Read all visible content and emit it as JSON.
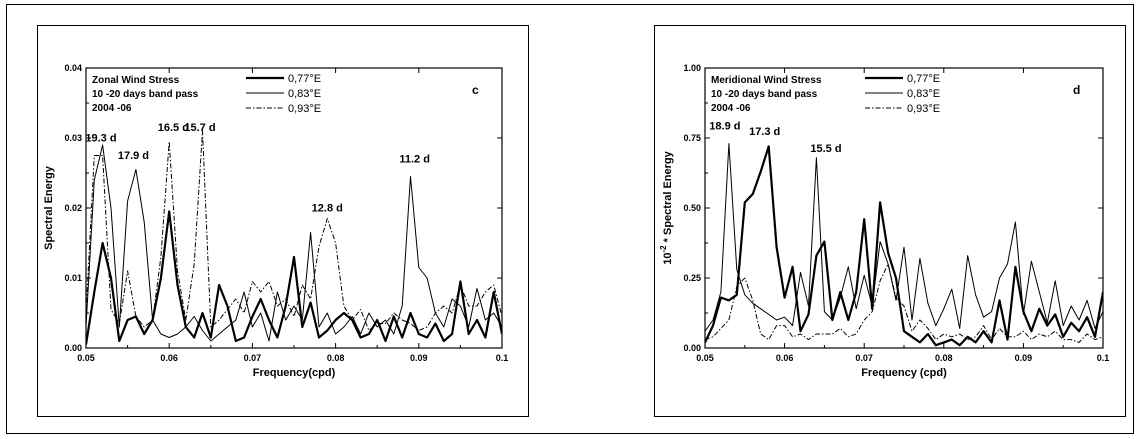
{
  "chart_data": [
    {
      "type": "line",
      "panel_letter": "c",
      "title_lines": [
        "Zonal Wind Stress",
        "10 -20  days band pass",
        "2004 -06"
      ],
      "xlabel": "Frequency(cpd)",
      "ylabel": "Spectral Energy",
      "ylabel_sup": "",
      "ylabel_prefix": "",
      "xlim": [
        0.05,
        0.1
      ],
      "ylim": [
        0,
        0.04
      ],
      "xticks": [
        0.05,
        0.06,
        0.07,
        0.08,
        0.09,
        0.1
      ],
      "xtick_labels": [
        "0.05",
        "0.06",
        "0.07",
        "0.08",
        "0.09",
        "0.1"
      ],
      "yticks": [
        0,
        0.01,
        0.02,
        0.03,
        0.04
      ],
      "ytick_labels": [
        "0.00",
        "0.01",
        "0.02",
        "0.03",
        "0.04"
      ],
      "legend_position": "top-center",
      "series": [
        {
          "name": "0,77°E",
          "style": "thick",
          "x": [
            0.05,
            0.051,
            0.052,
            0.053,
            0.054,
            0.055,
            0.056,
            0.057,
            0.058,
            0.059,
            0.06,
            0.061,
            0.062,
            0.063,
            0.064,
            0.065,
            0.066,
            0.067,
            0.068,
            0.069,
            0.07,
            0.071,
            0.072,
            0.073,
            0.074,
            0.075,
            0.076,
            0.077,
            0.078,
            0.079,
            0.08,
            0.081,
            0.082,
            0.083,
            0.084,
            0.085,
            0.086,
            0.087,
            0.088,
            0.089,
            0.09,
            0.091,
            0.092,
            0.093,
            0.094,
            0.095,
            0.096,
            0.097,
            0.098,
            0.099,
            0.1
          ],
          "y": [
            0.0005,
            0.008,
            0.015,
            0.01,
            0.001,
            0.004,
            0.0045,
            0.002,
            0.004,
            0.01,
            0.0195,
            0.009,
            0.003,
            0.0015,
            0.005,
            0.0015,
            0.009,
            0.006,
            0.001,
            0.0015,
            0.0045,
            0.007,
            0.004,
            0.0015,
            0.006,
            0.013,
            0.003,
            0.0065,
            0.0015,
            0.0025,
            0.004,
            0.005,
            0.004,
            0.0015,
            0.002,
            0.004,
            0.001,
            0.0045,
            0.0015,
            0.005,
            0.002,
            0.0015,
            0.0035,
            0.001,
            0.002,
            0.0095,
            0.002,
            0.004,
            0.0015,
            0.008,
            0.002
          ]
        },
        {
          "name": "0,83°E",
          "style": "thin",
          "x": [
            0.05,
            0.051,
            0.052,
            0.053,
            0.054,
            0.055,
            0.056,
            0.057,
            0.058,
            0.059,
            0.06,
            0.061,
            0.062,
            0.063,
            0.064,
            0.065,
            0.066,
            0.067,
            0.068,
            0.069,
            0.07,
            0.071,
            0.072,
            0.073,
            0.074,
            0.075,
            0.076,
            0.077,
            0.078,
            0.079,
            0.08,
            0.081,
            0.082,
            0.083,
            0.084,
            0.085,
            0.086,
            0.087,
            0.088,
            0.089,
            0.09,
            0.091,
            0.092,
            0.093,
            0.094,
            0.095,
            0.096,
            0.097,
            0.098,
            0.099,
            0.1
          ],
          "y": [
            0.003,
            0.024,
            0.029,
            0.02,
            0.003,
            0.021,
            0.0255,
            0.018,
            0.004,
            0.002,
            0.0015,
            0.002,
            0.003,
            0.0045,
            0.0025,
            0.001,
            0.002,
            0.003,
            0.004,
            0.008,
            0.003,
            0.005,
            0.001,
            0.008,
            0.004,
            0.006,
            0.004,
            0.0165,
            0.003,
            0.005,
            0.002,
            0.003,
            0.0045,
            0.002,
            0.005,
            0.003,
            0.004,
            0.002,
            0.006,
            0.0245,
            0.0115,
            0.01,
            0.005,
            0.003,
            0.007,
            0.006,
            0.003,
            0.0085,
            0.004,
            0.005,
            0.003
          ]
        },
        {
          "name": "0,93°E",
          "style": "dash-dot",
          "x": [
            0.05,
            0.051,
            0.052,
            0.053,
            0.054,
            0.055,
            0.056,
            0.057,
            0.058,
            0.059,
            0.06,
            0.061,
            0.062,
            0.063,
            0.064,
            0.065,
            0.066,
            0.067,
            0.068,
            0.069,
            0.07,
            0.071,
            0.072,
            0.073,
            0.074,
            0.075,
            0.076,
            0.077,
            0.078,
            0.079,
            0.08,
            0.081,
            0.082,
            0.083,
            0.084,
            0.085,
            0.086,
            0.087,
            0.088,
            0.089,
            0.09,
            0.091,
            0.092,
            0.093,
            0.094,
            0.095,
            0.096,
            0.097,
            0.098,
            0.099,
            0.1
          ],
          "y": [
            0.005,
            0.0275,
            0.0275,
            0.0055,
            0.0035,
            0.011,
            0.0045,
            0.003,
            0.004,
            0.013,
            0.0295,
            0.011,
            0.004,
            0.012,
            0.031,
            0.003,
            0.004,
            0.0055,
            0.007,
            0.005,
            0.0095,
            0.008,
            0.0095,
            0.006,
            0.007,
            0.0045,
            0.009,
            0.007,
            0.0145,
            0.0185,
            0.015,
            0.006,
            0.004,
            0.0055,
            0.0025,
            0.0035,
            0.0035,
            0.005,
            0.004,
            0.0035,
            0.0025,
            0.003,
            0.005,
            0.006,
            0.005,
            0.009,
            0.006,
            0.006,
            0.008,
            0.009,
            0.0045
          ]
        }
      ],
      "annotations": [
        {
          "text": "19.3 d",
          "x": 0.0518,
          "y": 0.0295
        },
        {
          "text": "17.9 d",
          "x": 0.0557,
          "y": 0.027
        },
        {
          "text": "16.5 d",
          "x": 0.0605,
          "y": 0.031
        },
        {
          "text": "15.7 d",
          "x": 0.0637,
          "y": 0.031
        },
        {
          "text": "12.8 d",
          "x": 0.079,
          "y": 0.0195
        },
        {
          "text": "11.2 d",
          "x": 0.0895,
          "y": 0.0265
        }
      ]
    },
    {
      "type": "line",
      "panel_letter": "d",
      "title_lines": [
        "Meridional Wind Stress",
        "10 -20  days band pass",
        "2004 -06"
      ],
      "xlabel": "Frequency (cpd)",
      "ylabel": " * Spectral Energy",
      "ylabel_prefix": "10",
      "ylabel_sup": "-2",
      "xlim": [
        0.05,
        0.1
      ],
      "ylim": [
        0,
        1.0
      ],
      "xticks": [
        0.05,
        0.06,
        0.07,
        0.08,
        0.09,
        0.1
      ],
      "xtick_labels": [
        "0.05",
        "0.06",
        "0.07",
        "0.08",
        "0.09",
        "0.1"
      ],
      "yticks": [
        0,
        0.25,
        0.5,
        0.75,
        1.0
      ],
      "ytick_labels": [
        "0.00",
        "0.25",
        "0.50",
        "0.75",
        "1.00"
      ],
      "legend_position": "top-center",
      "series": [
        {
          "name": "0,77°E",
          "style": "thick",
          "x": [
            0.05,
            0.051,
            0.052,
            0.053,
            0.054,
            0.055,
            0.056,
            0.057,
            0.058,
            0.059,
            0.06,
            0.061,
            0.062,
            0.063,
            0.064,
            0.065,
            0.066,
            0.067,
            0.068,
            0.069,
            0.07,
            0.071,
            0.072,
            0.073,
            0.074,
            0.075,
            0.076,
            0.077,
            0.078,
            0.079,
            0.08,
            0.081,
            0.082,
            0.083,
            0.084,
            0.085,
            0.086,
            0.087,
            0.088,
            0.089,
            0.09,
            0.091,
            0.092,
            0.093,
            0.094,
            0.095,
            0.096,
            0.097,
            0.098,
            0.099,
            0.1
          ],
          "y": [
            0.02,
            0.08,
            0.18,
            0.17,
            0.19,
            0.52,
            0.55,
            0.63,
            0.72,
            0.36,
            0.18,
            0.29,
            0.06,
            0.12,
            0.33,
            0.38,
            0.1,
            0.2,
            0.1,
            0.2,
            0.46,
            0.14,
            0.52,
            0.34,
            0.25,
            0.06,
            0.04,
            0.02,
            0.05,
            0.01,
            0.02,
            0.03,
            0.01,
            0.04,
            0.02,
            0.06,
            0.02,
            0.17,
            0.03,
            0.29,
            0.13,
            0.06,
            0.14,
            0.08,
            0.12,
            0.04,
            0.09,
            0.06,
            0.11,
            0.04,
            0.2
          ]
        },
        {
          "name": "0,83°E",
          "style": "thin",
          "x": [
            0.05,
            0.051,
            0.052,
            0.053,
            0.054,
            0.055,
            0.056,
            0.057,
            0.058,
            0.059,
            0.06,
            0.061,
            0.062,
            0.063,
            0.064,
            0.065,
            0.066,
            0.067,
            0.068,
            0.069,
            0.07,
            0.071,
            0.072,
            0.073,
            0.074,
            0.075,
            0.076,
            0.077,
            0.078,
            0.079,
            0.08,
            0.081,
            0.082,
            0.083,
            0.084,
            0.085,
            0.086,
            0.087,
            0.088,
            0.089,
            0.09,
            0.091,
            0.092,
            0.093,
            0.094,
            0.095,
            0.096,
            0.097,
            0.098,
            0.099,
            0.1
          ],
          "y": [
            0.06,
            0.1,
            0.2,
            0.73,
            0.28,
            0.19,
            0.16,
            0.14,
            0.12,
            0.1,
            0.11,
            0.08,
            0.27,
            0.15,
            0.68,
            0.13,
            0.1,
            0.18,
            0.29,
            0.14,
            0.26,
            0.15,
            0.38,
            0.3,
            0.17,
            0.36,
            0.1,
            0.32,
            0.16,
            0.08,
            0.14,
            0.21,
            0.07,
            0.33,
            0.19,
            0.11,
            0.13,
            0.25,
            0.3,
            0.45,
            0.12,
            0.31,
            0.2,
            0.09,
            0.24,
            0.08,
            0.15,
            0.1,
            0.17,
            0.07,
            0.13
          ]
        },
        {
          "name": "0,93°E",
          "style": "dash-dot",
          "x": [
            0.05,
            0.051,
            0.052,
            0.053,
            0.054,
            0.055,
            0.056,
            0.057,
            0.058,
            0.059,
            0.06,
            0.061,
            0.062,
            0.063,
            0.064,
            0.065,
            0.066,
            0.067,
            0.068,
            0.069,
            0.07,
            0.071,
            0.072,
            0.073,
            0.074,
            0.075,
            0.076,
            0.077,
            0.078,
            0.079,
            0.08,
            0.081,
            0.082,
            0.083,
            0.084,
            0.085,
            0.086,
            0.087,
            0.088,
            0.089,
            0.09,
            0.091,
            0.092,
            0.093,
            0.094,
            0.095,
            0.096,
            0.097,
            0.098,
            0.099,
            0.1
          ],
          "y": [
            0.03,
            0.04,
            0.07,
            0.1,
            0.22,
            0.25,
            0.17,
            0.05,
            0.03,
            0.08,
            0.08,
            0.04,
            0.05,
            0.03,
            0.05,
            0.05,
            0.05,
            0.07,
            0.04,
            0.05,
            0.1,
            0.13,
            0.24,
            0.3,
            0.18,
            0.15,
            0.06,
            0.1,
            0.07,
            0.03,
            0.05,
            0.04,
            0.05,
            0.03,
            0.04,
            0.08,
            0.03,
            0.07,
            0.04,
            0.04,
            0.06,
            0.03,
            0.05,
            0.04,
            0.06,
            0.03,
            0.03,
            0.02,
            0.05,
            0.03,
            0.04
          ]
        }
      ],
      "annotations": [
        {
          "text": "18.9 d",
          "x": 0.0525,
          "y": 0.78
        },
        {
          "text": "17.3 d",
          "x": 0.0575,
          "y": 0.76
        },
        {
          "text": "15.5 d",
          "x": 0.0652,
          "y": 0.7
        }
      ]
    }
  ]
}
